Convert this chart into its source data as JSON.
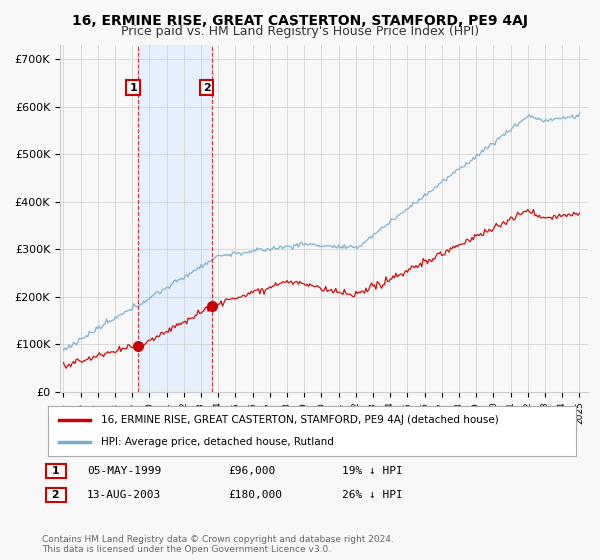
{
  "title": "16, ERMINE RISE, GREAT CASTERTON, STAMFORD, PE9 4AJ",
  "subtitle": "Price paid vs. HM Land Registry's House Price Index (HPI)",
  "ylabel_ticks": [
    "£0",
    "£100K",
    "£200K",
    "£300K",
    "£400K",
    "£500K",
    "£600K",
    "£700K"
  ],
  "ytick_vals": [
    0,
    100000,
    200000,
    300000,
    400000,
    500000,
    600000,
    700000
  ],
  "ylim": [
    0,
    730000
  ],
  "xlim_start": 1994.8,
  "xlim_end": 2025.5,
  "sale1_year": 1999.35,
  "sale1_price": 96000,
  "sale1_label": "1",
  "sale1_date": "05-MAY-1999",
  "sale1_price_str": "£96,000",
  "sale1_hpi_diff": "19% ↓ HPI",
  "sale2_year": 2003.62,
  "sale2_price": 180000,
  "sale2_label": "2",
  "sale2_date": "13-AUG-2003",
  "sale2_price_str": "£180,000",
  "sale2_hpi_diff": "26% ↓ HPI",
  "red_line_color": "#cc0000",
  "blue_line_color": "#7aadcf",
  "shade_color": "#ddeeff",
  "vline_color": "#cc0000",
  "background_color": "#f8f8f8",
  "grid_color": "#cccccc",
  "legend1_label": "16, ERMINE RISE, GREAT CASTERTON, STAMFORD, PE9 4AJ (detached house)",
  "legend2_label": "HPI: Average price, detached house, Rutland",
  "footer": "Contains HM Land Registry data © Crown copyright and database right 2024.\nThis data is licensed under the Open Government Licence v3.0.",
  "title_fontsize": 10,
  "subtitle_fontsize": 9,
  "axis_fontsize": 8
}
